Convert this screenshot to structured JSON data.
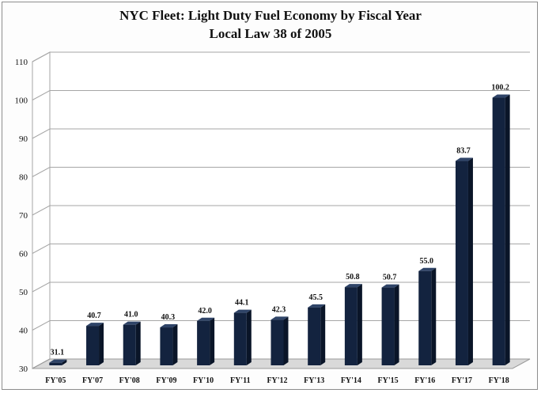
{
  "chart_data": {
    "type": "bar",
    "title": "NYC Fleet: Light Duty Fuel Economy by Fiscal Year",
    "subtitle": "Local Law 38 of 2005",
    "categories": [
      "FY'05",
      "FY'07",
      "FY'08",
      "FY'09",
      "FY'10",
      "FY'11",
      "FY'12",
      "FY'13",
      "FY'14",
      "FY'15",
      "FY'16",
      "FY'17",
      "FY'18"
    ],
    "values": [
      31.1,
      40.7,
      41.0,
      40.3,
      42.0,
      44.1,
      42.3,
      45.5,
      50.8,
      50.7,
      55.0,
      83.7,
      100.2
    ],
    "data_labels": [
      "31.1",
      "40.7",
      "41.0",
      "40.3",
      "42.0",
      "44.1",
      "42.3",
      "45.5",
      "50.8",
      "50.7",
      "55.0",
      "83.7",
      "100.2"
    ],
    "ylim": [
      30,
      110
    ],
    "yticks": [
      "30",
      "40",
      "50",
      "60",
      "70",
      "80",
      "90",
      "100",
      "110"
    ],
    "xlabel": "",
    "ylabel": "",
    "grid": true,
    "legend": "none",
    "colors": {
      "bar_front": "#13233f",
      "bar_side": "#0a1528",
      "bar_top": "#2f4468",
      "grid": "#a6a6a6",
      "floor": "#d9d9d9"
    }
  }
}
